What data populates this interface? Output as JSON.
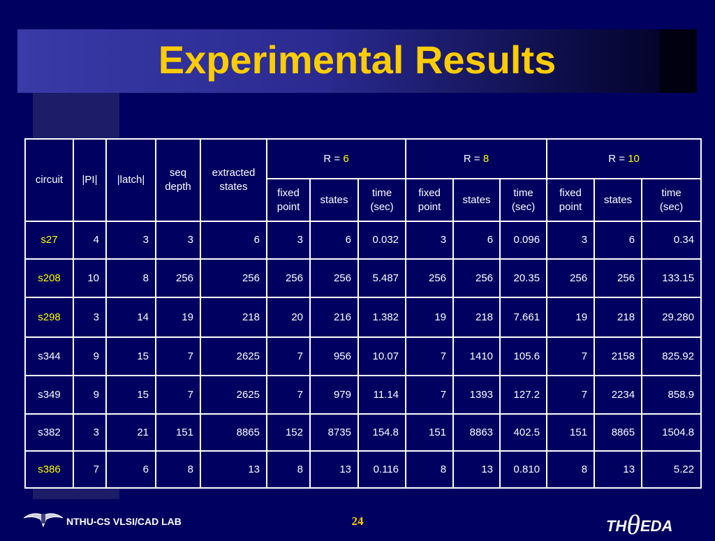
{
  "header": {
    "title": "Experimental Results"
  },
  "table": {
    "fixed_headers": [
      "circuit",
      "|PI|",
      "|latch|",
      "seq\ndepth",
      "extracted\nstates"
    ],
    "groups": [
      {
        "prefix": "R =",
        "value": "6",
        "value_color": "#ffff00"
      },
      {
        "prefix": "R =",
        "value": "8",
        "value_color": "#ffff00"
      },
      {
        "prefix": "R =",
        "value": "10",
        "value_color": "#ffff00"
      }
    ],
    "sub_headers": [
      "fixed\npoint",
      "states",
      "time\n(sec)"
    ],
    "rows": [
      {
        "color": "#ffff00",
        "cells": [
          "s27",
          "4",
          "3",
          "3",
          "6",
          "3",
          "6",
          "0.032",
          "3",
          "6",
          "0.096",
          "3",
          "6",
          "0.34"
        ]
      },
      {
        "color": "#ffff00",
        "cells": [
          "s208",
          "10",
          "8",
          "256",
          "256",
          "256",
          "256",
          "5.487",
          "256",
          "256",
          "20.35",
          "256",
          "256",
          "133.15"
        ]
      },
      {
        "color": "#ffff00",
        "cells": [
          "s298",
          "3",
          "14",
          "19",
          "218",
          "20",
          "216",
          "1.382",
          "19",
          "218",
          "7.661",
          "19",
          "218",
          "29.280"
        ]
      },
      {
        "color": "#ffffff",
        "cells": [
          "s344",
          "9",
          "15",
          "7",
          "2625",
          "7",
          "956",
          "10.07",
          "7",
          "1410",
          "105.6",
          "7",
          "2158",
          "825.92"
        ]
      },
      {
        "color": "#ffffff",
        "cells": [
          "s349",
          "9",
          "15",
          "7",
          "2625",
          "7",
          "979",
          "11.14",
          "7",
          "1393",
          "127.2",
          "7",
          "2234",
          "858.9"
        ]
      },
      {
        "color": "#ffffff",
        "cells": [
          "s382",
          "3",
          "21",
          "151",
          "8865",
          "152",
          "8735",
          "154.8",
          "151",
          "8863",
          "402.5",
          "151",
          "8865",
          "1504.8"
        ]
      },
      {
        "color": "#ffff00",
        "cells": [
          "s386",
          "7",
          "6",
          "8",
          "13",
          "8",
          "13",
          "0.116",
          "8",
          "13",
          "0.810",
          "8",
          "13",
          "5.22"
        ]
      }
    ]
  },
  "footer": {
    "lab": "NTHU-CS VLSI/CAD LAB",
    "page": "24",
    "logo": [
      "TH",
      "θ",
      "EDA"
    ]
  }
}
